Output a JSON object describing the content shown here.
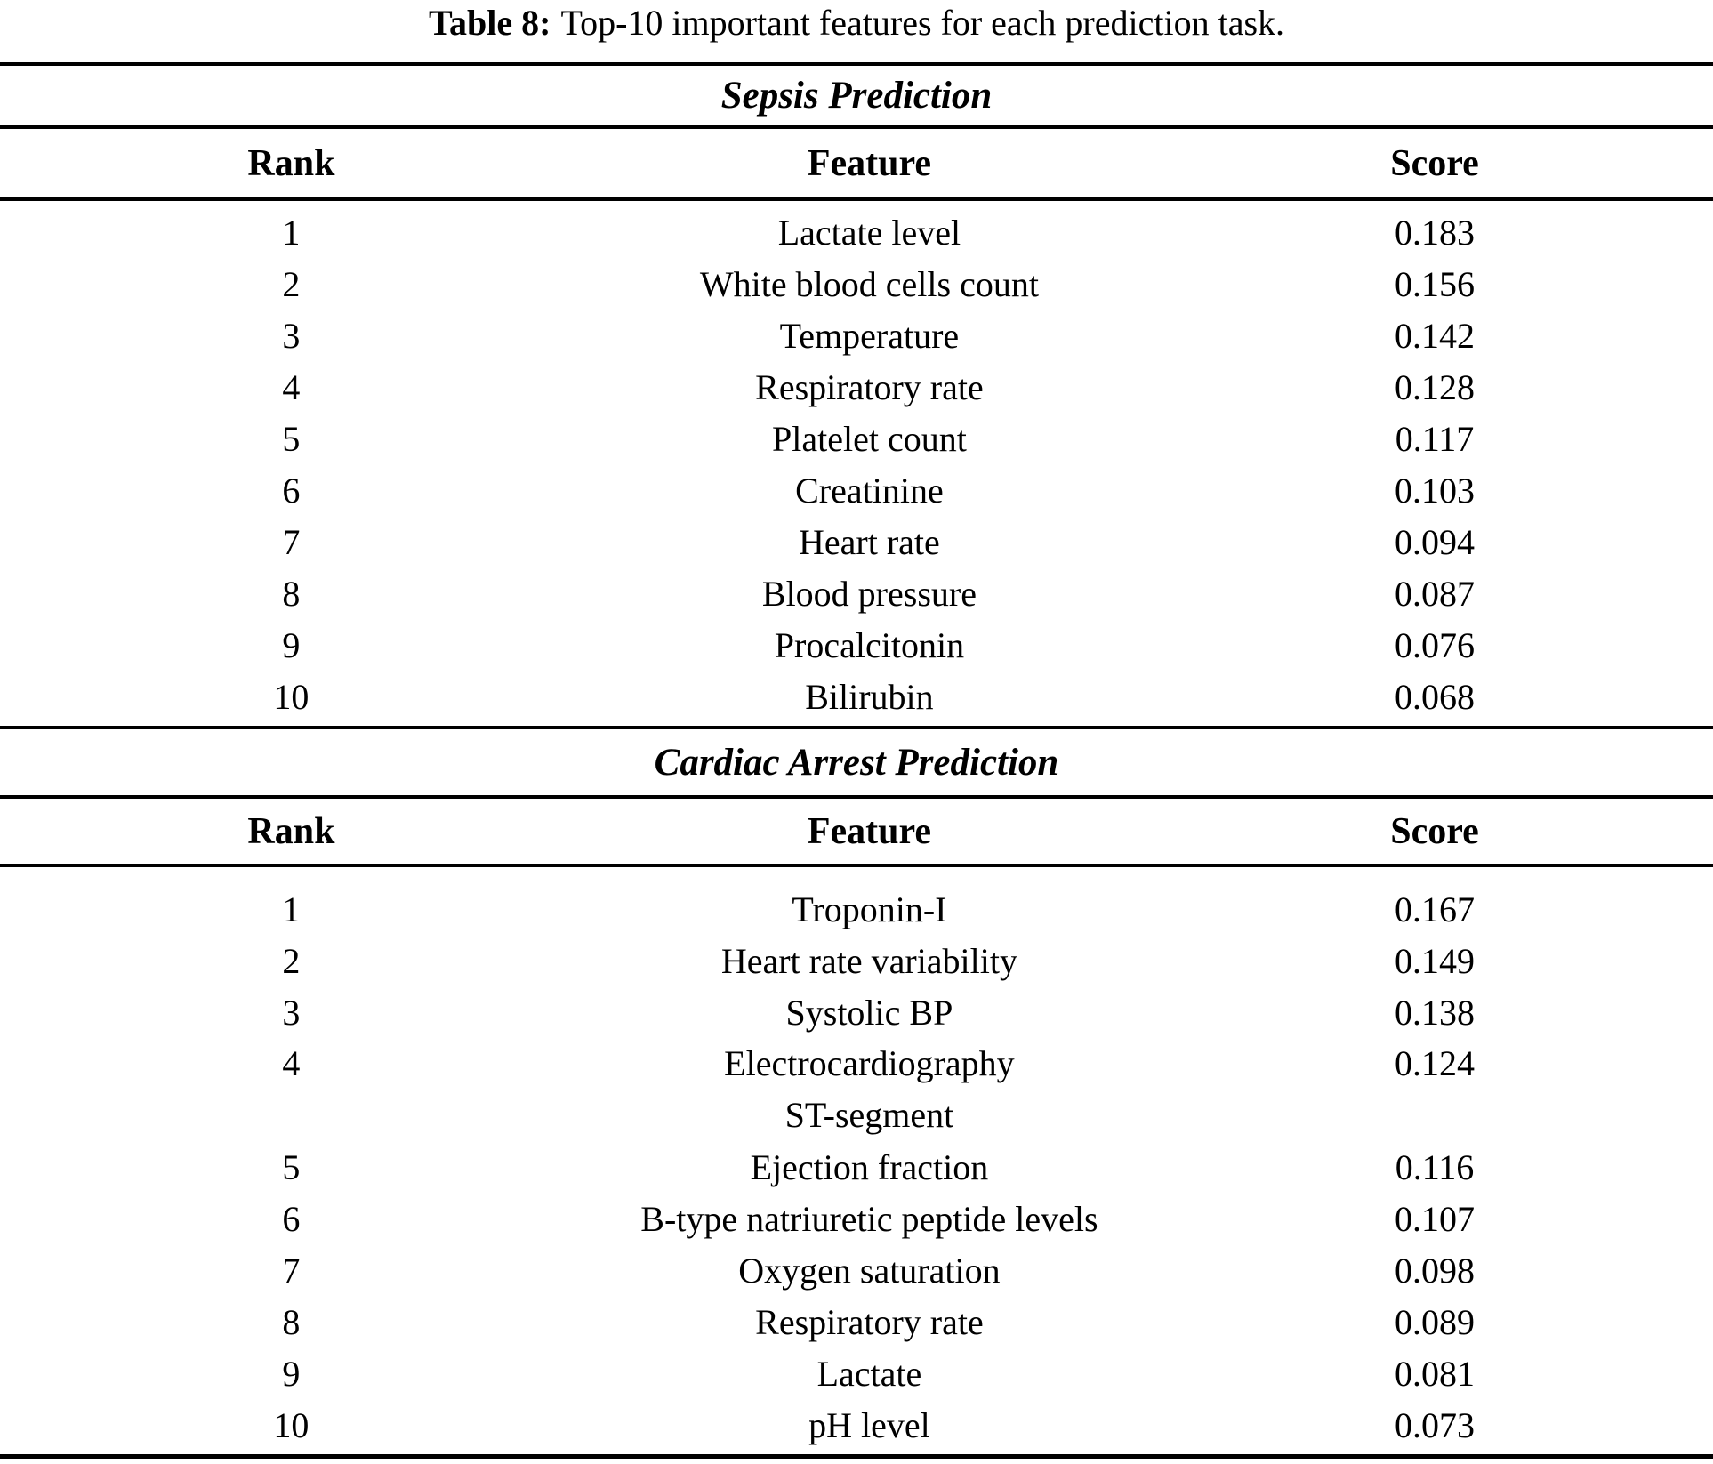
{
  "caption": {
    "label": "Table 8:",
    "text": "Top-10 important features for each prediction task."
  },
  "columns": {
    "rank": "Rank",
    "feature": "Feature",
    "score": "Score"
  },
  "colors": {
    "text": "#000000",
    "background": "#ffffff",
    "rule": "#000000"
  },
  "sections": [
    {
      "title": "Sepsis Prediction",
      "rows": [
        {
          "rank": "1",
          "feature": "Lactate level",
          "score": "0.183"
        },
        {
          "rank": "2",
          "feature": "White blood cells count",
          "score": "0.156"
        },
        {
          "rank": "3",
          "feature": "Temperature",
          "score": "0.142"
        },
        {
          "rank": "4",
          "feature": "Respiratory rate",
          "score": "0.128"
        },
        {
          "rank": "5",
          "feature": "Platelet count",
          "score": "0.117"
        },
        {
          "rank": "6",
          "feature": "Creatinine",
          "score": "0.103"
        },
        {
          "rank": "7",
          "feature": "Heart rate",
          "score": "0.094"
        },
        {
          "rank": "8",
          "feature": "Blood pressure",
          "score": "0.087"
        },
        {
          "rank": "9",
          "feature": "Procalcitonin",
          "score": "0.076"
        },
        {
          "rank": "10",
          "feature": "Bilirubin",
          "score": "0.068"
        }
      ]
    },
    {
      "title": "Cardiac Arrest Prediction",
      "rows": [
        {
          "rank": "1",
          "feature": "Troponin-I",
          "score": "0.167"
        },
        {
          "rank": "2",
          "feature": "Heart rate variability",
          "score": "0.149"
        },
        {
          "rank": "3",
          "feature": "Systolic BP",
          "score": "0.138"
        },
        {
          "rank": "4",
          "feature": "Electrocardiography",
          "feature_line2": "ST-segment",
          "score": "0.124"
        },
        {
          "rank": "5",
          "feature": "Ejection fraction",
          "score": "0.116"
        },
        {
          "rank": "6",
          "feature": "B-type natriuretic peptide levels",
          "score": "0.107"
        },
        {
          "rank": "7",
          "feature": "Oxygen saturation",
          "score": "0.098"
        },
        {
          "rank": "8",
          "feature": "Respiratory rate",
          "score": "0.089"
        },
        {
          "rank": "9",
          "feature": "Lactate",
          "score": "0.081"
        },
        {
          "rank": "10",
          "feature": "pH level",
          "score": "0.073"
        }
      ]
    }
  ]
}
